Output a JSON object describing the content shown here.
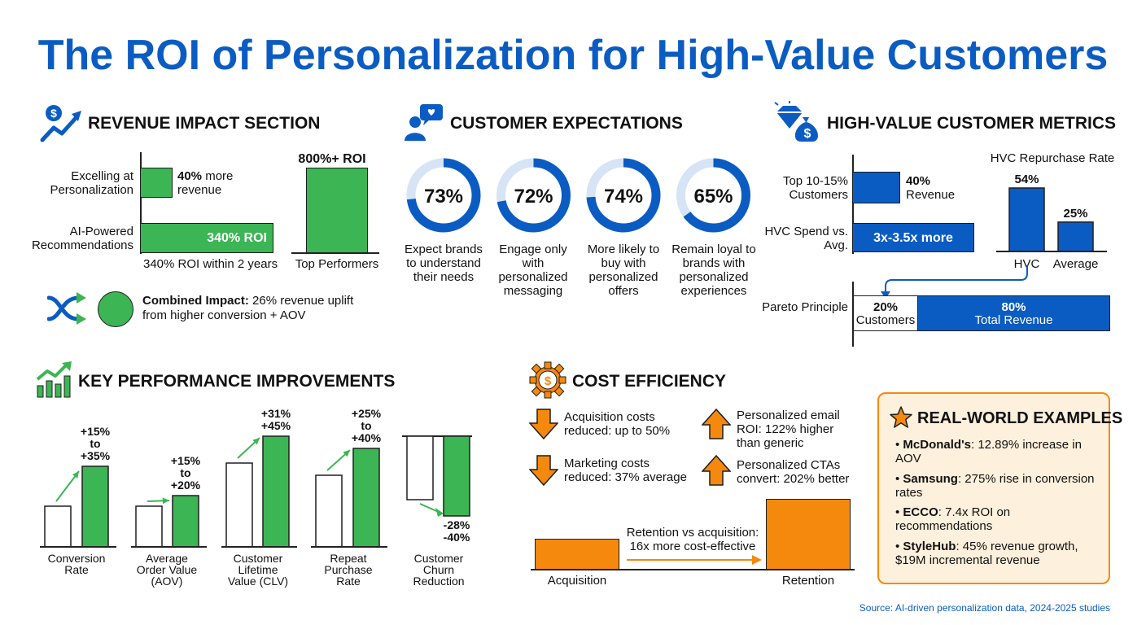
{
  "title": "The ROI of Personalization for High-Value Customers",
  "colors": {
    "blue": "#0b5cc2",
    "green": "#3cb554",
    "orange": "#f5890d",
    "light_blue": "#d6e4f5"
  },
  "revenue": {
    "heading": "REVENUE IMPACT SECTION",
    "icon": "dollar-growth-arrow-icon",
    "row1_label": "Excelling at Personalization",
    "row1_value_bold": "40%",
    "row1_value_rest": " more revenue",
    "row2_label": "AI-Powered Recommendations",
    "row2_bar_label": "340% ROI",
    "axis_caption": "340% ROI within 2 years",
    "top_value": "800%+ ROI",
    "top_caption": "Top Performers",
    "combined_bold": "Combined Impact:",
    "combined_rest": " 26% revenue uplift from higher conversion + AOV",
    "combined_icons": [
      "shuffle-arrows-icon",
      "green-circle-icon"
    ]
  },
  "expectations": {
    "heading": "CUSTOMER EXPECTATIONS",
    "icon": "person-chat-heart-icon",
    "items": [
      {
        "value": 73,
        "label": "73%",
        "text": "Expect brands to understand their needs"
      },
      {
        "value": 72,
        "label": "72%",
        "text": "Engage only with personalized messaging"
      },
      {
        "value": 74,
        "label": "74%",
        "text": "More likely to buy with personalized offers"
      },
      {
        "value": 65,
        "label": "65%",
        "text": "Remain loyal to brands with personalized experiences"
      }
    ]
  },
  "hvc": {
    "heading": "HIGH-VALUE CUSTOMER METRICS",
    "icon": "diamond-money-bag-icon",
    "row1_label": "Top 10-15% Customers",
    "row1_value_bold": "40%",
    "row1_value_rest": "Revenue",
    "row2_label": "HVC Spend vs. Avg.",
    "row2_bar_label": "3x-3.5x more",
    "repurchase_title": "HVC Repurchase Rate",
    "pareto_label": "Pareto Principle",
    "pareto_left_pct": "20%",
    "pareto_left_text": "Customers",
    "pareto_right_pct": "80%",
    "pareto_right_text": "Total Revenue"
  },
  "kpi": {
    "heading": "KEY PERFORMANCE IMPROVEMENTS",
    "icon": "bar-chart-growth-icon"
  },
  "cost": {
    "heading": "COST EFFICIENCY",
    "icon": "gear-dollar-icon",
    "items": [
      {
        "dir": "down",
        "text": "Acquisition costs reduced: up to 50%"
      },
      {
        "dir": "down",
        "text": "Marketing costs reduced: 37% average"
      },
      {
        "dir": "up",
        "text": "Personalized email ROI: 122% higher than generic"
      },
      {
        "dir": "up",
        "text": "Personalized CTAs convert: 202% better"
      }
    ],
    "retention_note": "Retention vs acquisition: 16x more cost-effective"
  },
  "examples": {
    "heading": "REAL-WORLD EXAMPLES",
    "icon": "star-icon",
    "items": [
      {
        "brand": "McDonald's",
        "text": ": 12.89% increase in AOV"
      },
      {
        "brand": "Samsung",
        "text": ": 275% rise in conversion rates"
      },
      {
        "brand": "ECCO",
        "text": ": 7.4x ROI on recommendations"
      },
      {
        "brand": "StyleHub",
        "text": ": 45% revenue growth, $19M incremental revenue"
      }
    ]
  },
  "source": "Source: AI-driven personalization data, 2024-2025 studies",
  "chart_data": [
    {
      "type": "bar",
      "orientation": "horizontal",
      "title": "",
      "categories": [
        "Excelling at Personalization",
        "AI-Powered Recommendations"
      ],
      "values": [
        40,
        340
      ],
      "value_labels": [
        "40% more revenue",
        "340% ROI"
      ],
      "unit": "%",
      "xlabel": "340% ROI within 2 years"
    },
    {
      "type": "bar",
      "title": "",
      "categories": [
        "Top Performers"
      ],
      "values": [
        800
      ],
      "value_labels": [
        "800%+ ROI"
      ],
      "unit": "% ROI"
    },
    {
      "type": "pie",
      "subtype": "donut",
      "title": "",
      "categories": [
        "Expect brands to understand their needs",
        "Engage only with personalized messaging",
        "More likely to buy with personalized offers",
        "Remain loyal to brands with personalized experiences"
      ],
      "values": [
        73,
        72,
        74,
        65
      ],
      "unit": "%"
    },
    {
      "type": "bar",
      "orientation": "horizontal",
      "title": "",
      "categories": [
        "Top 10-15% Customers",
        "HVC Spend vs. Avg."
      ],
      "value_labels": [
        "40% Revenue",
        "3x-3.5x more"
      ]
    },
    {
      "type": "bar",
      "title": "HVC Repurchase Rate",
      "categories": [
        "HVC",
        "Average"
      ],
      "values": [
        54,
        25
      ],
      "value_labels": [
        "54%",
        "25%"
      ],
      "unit": "%"
    },
    {
      "type": "bar",
      "subtype": "stacked-100",
      "title": "",
      "categories": [
        "Pareto Principle"
      ],
      "series": [
        {
          "name": "Customers",
          "values": [
            20
          ]
        },
        {
          "name": "Total Revenue",
          "values": [
            80
          ]
        }
      ],
      "unit": "%"
    },
    {
      "type": "bar",
      "title": "",
      "categories": [
        "Conversion Rate",
        "Average Order Value (AOV)",
        "Customer Lifetime Value (CLV)",
        "Repeat Purchase Rate",
        "Customer Churn Reduction"
      ],
      "change_labels": [
        [
          "+15%",
          "to",
          "+35%"
        ],
        [
          "+15%",
          "to",
          "+20%"
        ],
        [
          "+31%",
          "+45%"
        ],
        [
          "+25%",
          "to",
          "+40%"
        ],
        [
          "-28%",
          "-40%"
        ]
      ],
      "change_low": [
        15,
        15,
        31,
        25,
        -28
      ],
      "change_high": [
        35,
        20,
        45,
        40,
        -40
      ],
      "unit": "%"
    },
    {
      "type": "bar",
      "title": "",
      "categories": [
        "Acquisition",
        "Retention"
      ],
      "value_labels": [
        "",
        ""
      ],
      "annotation": "Retention vs acquisition: 16x more cost-effective"
    }
  ]
}
